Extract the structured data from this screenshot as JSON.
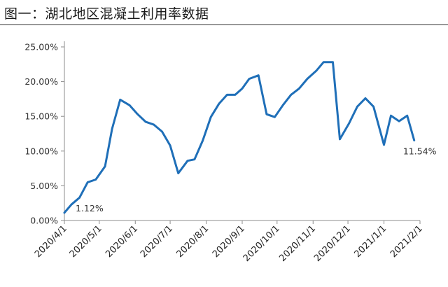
{
  "title": "图一：湖北地区混凝土利用率数据",
  "chart_data": {
    "type": "line",
    "title": "图一：湖北地区混凝土利用率数据",
    "xlabel": "",
    "ylabel": "",
    "ylim": [
      0,
      25
    ],
    "yticks": [
      "0.00%",
      "5.00%",
      "10.00%",
      "15.00%",
      "20.00%",
      "25.00%"
    ],
    "xticks": [
      "2020/4/1",
      "2020/5/1",
      "2020/6/1",
      "2020/7/1",
      "2020/8/1",
      "2020/9/1",
      "2020/10/1",
      "2020/11/1",
      "2020/12/1",
      "2021/1/1",
      "2021/2/1"
    ],
    "x": [
      "2020-04-01",
      "2020-04-07",
      "2020-04-14",
      "2020-04-21",
      "2020-04-28",
      "2020-05-06",
      "2020-05-12",
      "2020-05-19",
      "2020-05-27",
      "2020-06-03",
      "2020-06-10",
      "2020-06-17",
      "2020-06-24",
      "2020-07-01",
      "2020-07-08",
      "2020-07-16",
      "2020-07-22",
      "2020-07-29",
      "2020-08-05",
      "2020-08-12",
      "2020-08-19",
      "2020-08-26",
      "2020-09-01",
      "2020-09-07",
      "2020-09-15",
      "2020-09-22",
      "2020-09-29",
      "2020-10-06",
      "2020-10-13",
      "2020-10-20",
      "2020-10-27",
      "2020-11-04",
      "2020-11-10",
      "2020-11-18",
      "2020-11-24",
      "2020-12-02",
      "2020-12-09",
      "2020-12-16",
      "2020-12-23",
      "2021-01-01",
      "2021-01-07",
      "2021-01-14",
      "2021-01-21",
      "2021-01-27"
    ],
    "series": [
      {
        "color": "#1f6fb8",
        "values": [
          1.12,
          2.3,
          3.3,
          5.5,
          5.9,
          7.8,
          13.2,
          17.4,
          16.6,
          15.3,
          14.2,
          13.8,
          12.8,
          10.8,
          6.8,
          8.6,
          8.8,
          11.5,
          14.9,
          16.8,
          18.1,
          18.1,
          19.0,
          20.4,
          20.9,
          15.3,
          14.9,
          16.6,
          18.1,
          19.0,
          20.4,
          21.6,
          22.8,
          22.8,
          11.7,
          14.0,
          16.4,
          17.6,
          16.4,
          10.9,
          15.1,
          14.3,
          15.1,
          11.54
        ]
      }
    ],
    "annotations": [
      {
        "text": "1.12%",
        "x": "2020-04-01",
        "y": 1.12
      },
      {
        "text": "11.54%",
        "x": "2021-01-27",
        "y": 11.54
      }
    ],
    "grid": false,
    "legend": "none"
  }
}
